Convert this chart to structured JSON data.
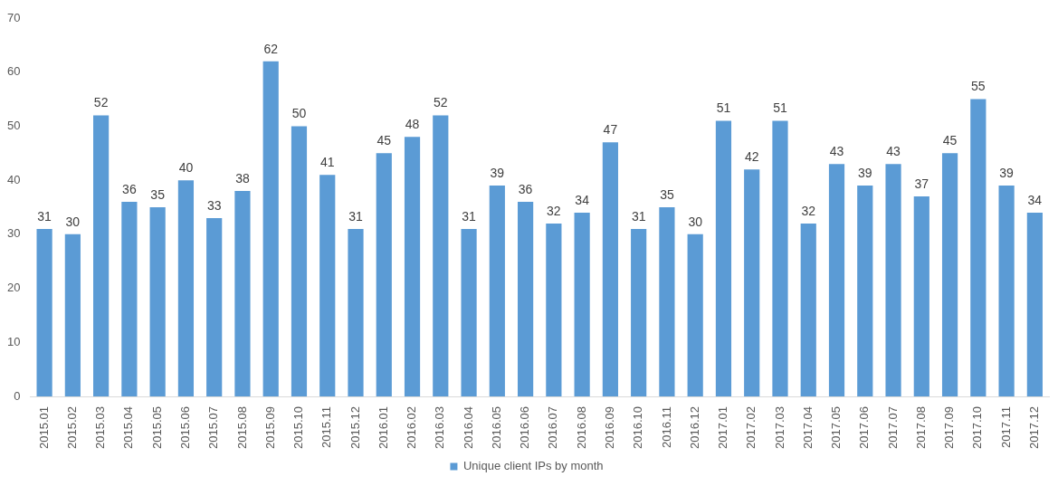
{
  "chart_data": {
    "type": "bar",
    "categories": [
      "2015.01",
      "2015.02",
      "2015.03",
      "2015.04",
      "2015.05",
      "2015.06",
      "2015.07",
      "2015.08",
      "2015.09",
      "2015.10",
      "2015.11",
      "2015.12",
      "2016.01",
      "2016.02",
      "2016.03",
      "2016.04",
      "2016.05",
      "2016.06",
      "2016.07",
      "2016.08",
      "2016.09",
      "2016.10",
      "2016.11",
      "2016.12",
      "2017.01",
      "2017.02",
      "2017.03",
      "2017.04",
      "2017.05",
      "2017.06",
      "2017.07",
      "2017.08",
      "2017.09",
      "2017.10",
      "2017.11",
      "2017.12"
    ],
    "series": [
      {
        "name": "Unique client IPs by month",
        "color": "#5b9bd5",
        "values": [
          31,
          30,
          52,
          36,
          35,
          40,
          33,
          38,
          62,
          50,
          41,
          31,
          45,
          48,
          52,
          31,
          39,
          36,
          32,
          34,
          47,
          31,
          35,
          30,
          51,
          42,
          51,
          32,
          43,
          39,
          43,
          37,
          45,
          55,
          39,
          34
        ]
      }
    ],
    "ylim": [
      0,
      70
    ],
    "yticks": [
      0,
      10,
      20,
      30,
      40,
      50,
      60,
      70
    ],
    "grid": false,
    "legend": "bottom",
    "data_labels": true
  }
}
